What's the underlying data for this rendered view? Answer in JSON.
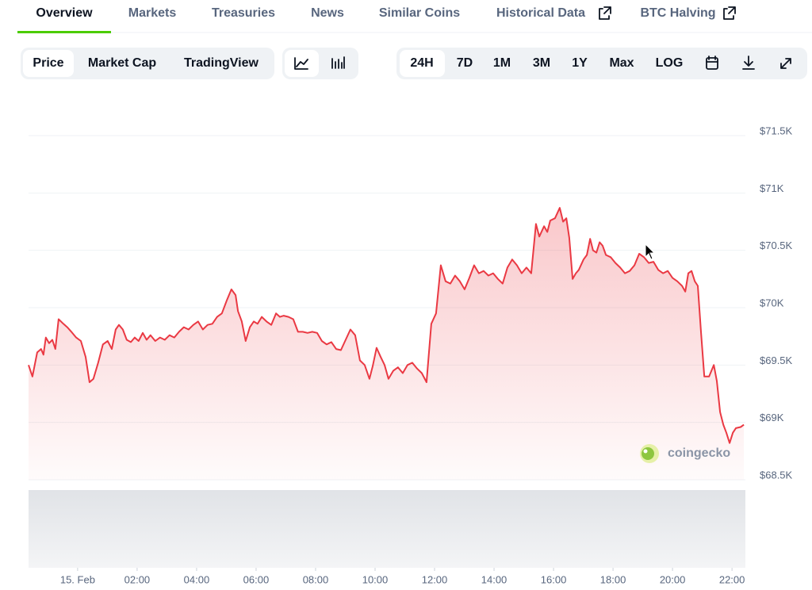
{
  "tabs": [
    "Overview",
    "Markets",
    "Treasuries",
    "News",
    "Similar Coins",
    "Historical Data",
    "BTC Halving"
  ],
  "view_buttons": [
    "Price",
    "Market Cap",
    "TradingView"
  ],
  "range_buttons": [
    "24H",
    "7D",
    "1M",
    "3M",
    "1Y",
    "Max",
    "LOG"
  ],
  "watermark": "coingecko",
  "chart_data": {
    "type": "line",
    "color": "#ea3943",
    "xlim": [
      -1.65,
      22.45
    ],
    "xticks": [
      {
        "value": 0,
        "label": "15. Feb"
      },
      {
        "value": 2,
        "label": "02:00"
      },
      {
        "value": 4,
        "label": "04:00"
      },
      {
        "value": 6,
        "label": "06:00"
      },
      {
        "value": 8,
        "label": "08:00"
      },
      {
        "value": 10,
        "label": "10:00"
      },
      {
        "value": 12,
        "label": "12:00"
      },
      {
        "value": 14,
        "label": "14:00"
      },
      {
        "value": 16,
        "label": "16:00"
      },
      {
        "value": 18,
        "label": "18:00"
      },
      {
        "value": 20,
        "label": "20:00"
      },
      {
        "value": 22,
        "label": "22:00"
      }
    ],
    "ylim": [
      68500,
      71500
    ],
    "yticks": [
      {
        "value": 71500,
        "label": "$71.5K"
      },
      {
        "value": 71000,
        "label": "$71K"
      },
      {
        "value": 70500,
        "label": "$70.5K"
      },
      {
        "value": 70000,
        "label": "$70K"
      },
      {
        "value": 69500,
        "label": "$69.5K"
      },
      {
        "value": 69000,
        "label": "$69K"
      },
      {
        "value": 68500,
        "label": "$68.5K"
      }
    ],
    "grid": true,
    "x": [
      -1.65,
      -1.52,
      -1.36,
      -1.23,
      -1.15,
      -1.07,
      -0.96,
      -0.85,
      -0.75,
      -0.64,
      -0.48,
      -0.35,
      -0.21,
      -0.05,
      0.11,
      0.27,
      0.4,
      0.53,
      0.69,
      0.85,
      1.01,
      1.15,
      1.28,
      1.39,
      1.52,
      1.65,
      1.79,
      1.92,
      2.05,
      2.19,
      2.32,
      2.45,
      2.61,
      2.77,
      2.93,
      3.09,
      3.25,
      3.41,
      3.57,
      3.73,
      3.89,
      4.05,
      4.21,
      4.37,
      4.53,
      4.69,
      4.85,
      5.01,
      5.17,
      5.31,
      5.39,
      5.52,
      5.65,
      5.79,
      5.92,
      6.05,
      6.19,
      6.35,
      6.51,
      6.67,
      6.8,
      6.93,
      7.09,
      7.25,
      7.41,
      7.57,
      7.73,
      7.89,
      8.05,
      8.21,
      8.37,
      8.53,
      8.69,
      8.85,
      9.01,
      9.17,
      9.33,
      9.49,
      9.65,
      9.81,
      9.92,
      10.05,
      10.19,
      10.32,
      10.45,
      10.61,
      10.77,
      10.93,
      11.09,
      11.25,
      11.41,
      11.57,
      11.73,
      11.89,
      12.05,
      12.21,
      12.37,
      12.53,
      12.69,
      12.85,
      13.01,
      13.17,
      13.33,
      13.49,
      13.65,
      13.81,
      13.97,
      14.13,
      14.29,
      14.45,
      14.61,
      14.77,
      14.93,
      15.09,
      15.25,
      15.41,
      15.52,
      15.68,
      15.79,
      15.89,
      16.05,
      16.21,
      16.32,
      16.43,
      16.53,
      16.64,
      16.75,
      16.85,
      17.01,
      17.12,
      17.23,
      17.33,
      17.44,
      17.55,
      17.65,
      17.76,
      17.92,
      18.08,
      18.24,
      18.4,
      18.56,
      18.72,
      18.88,
      19.04,
      19.2,
      19.36,
      19.52,
      19.68,
      19.84,
      20.0,
      20.16,
      20.32,
      20.43,
      20.53,
      20.64,
      20.75,
      20.85,
      20.96,
      21.07,
      21.23,
      21.39,
      21.49,
      21.6,
      21.71,
      21.81,
      21.92,
      22.03,
      22.13,
      22.29,
      22.4
    ],
    "values": [
      69500,
      69400,
      69610,
      69640,
      69590,
      69740,
      69690,
      69720,
      69640,
      69900,
      69860,
      69830,
      69790,
      69740,
      69710,
      69570,
      69350,
      69380,
      69520,
      69680,
      69710,
      69640,
      69810,
      69850,
      69810,
      69720,
      69700,
      69740,
      69710,
      69780,
      69720,
      69760,
      69710,
      69740,
      69720,
      69760,
      69740,
      69790,
      69830,
      69810,
      69850,
      69880,
      69810,
      69850,
      69860,
      69920,
      69950,
      70060,
      70160,
      70110,
      69970,
      69880,
      69710,
      69830,
      69880,
      69860,
      69920,
      69880,
      69850,
      69950,
      69920,
      69930,
      69920,
      69900,
      69790,
      69790,
      69780,
      69790,
      69780,
      69710,
      69680,
      69700,
      69640,
      69630,
      69720,
      69810,
      69760,
      69540,
      69500,
      69380,
      69490,
      69650,
      69570,
      69500,
      69380,
      69450,
      69480,
      69430,
      69500,
      69520,
      69470,
      69430,
      69350,
      69860,
      69950,
      70370,
      70230,
      70210,
      70280,
      70230,
      70160,
      70260,
      70370,
      70300,
      70320,
      70280,
      70300,
      70250,
      70210,
      70350,
      70420,
      70370,
      70300,
      70350,
      70300,
      70730,
      70620,
      70710,
      70660,
      70760,
      70780,
      70870,
      70750,
      70780,
      70610,
      70250,
      70300,
      70330,
      70420,
      70460,
      70600,
      70500,
      70480,
      70570,
      70540,
      70460,
      70440,
      70390,
      70350,
      70300,
      70320,
      70370,
      70470,
      70440,
      70390,
      70400,
      70330,
      70300,
      70320,
      70260,
      70230,
      70190,
      70140,
      70300,
      70320,
      70230,
      70190,
      69780,
      69400,
      69400,
      69500,
      69360,
      69090,
      68980,
      68910,
      68820,
      68910,
      68950,
      68960,
      68980
    ]
  }
}
